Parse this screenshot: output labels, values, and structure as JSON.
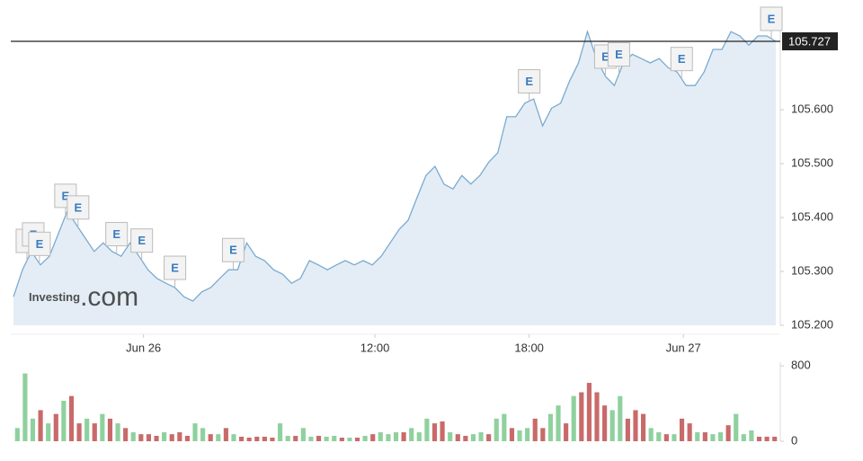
{
  "chart_data": [
    {
      "type": "area",
      "color": "#7aaad0",
      "fill": "#e4edf5",
      "watermark": {
        "brand": "Investing",
        "suffix": ".com"
      },
      "x": [
        0,
        1,
        2,
        3,
        4,
        5,
        6,
        7,
        8,
        9,
        10,
        11,
        12,
        13,
        14,
        15,
        16,
        17,
        18,
        19,
        20,
        21,
        22,
        23,
        24,
        25,
        26,
        27,
        28,
        29,
        30,
        31,
        32,
        33,
        34,
        35,
        36,
        37,
        38,
        39,
        40,
        41,
        42,
        43,
        44,
        45,
        46,
        47,
        48,
        49,
        50,
        51,
        52,
        53,
        54,
        55,
        56,
        57,
        58,
        59,
        60,
        61,
        62,
        63,
        64,
        65,
        66,
        67,
        68,
        69,
        70,
        71,
        72,
        73,
        74,
        75,
        76,
        77,
        78,
        79,
        80,
        81,
        82,
        83,
        84,
        85
      ],
      "values": [
        105.253,
        105.303,
        105.337,
        105.312,
        105.328,
        105.37,
        105.412,
        105.387,
        105.362,
        105.337,
        105.353,
        105.337,
        105.328,
        105.353,
        105.328,
        105.303,
        105.287,
        105.278,
        105.27,
        105.253,
        105.245,
        105.262,
        105.27,
        105.287,
        105.303,
        105.303,
        105.353,
        105.328,
        105.32,
        105.303,
        105.295,
        105.278,
        105.287,
        105.32,
        105.312,
        105.303,
        105.312,
        105.32,
        105.312,
        105.32,
        105.312,
        105.328,
        105.353,
        105.378,
        105.395,
        105.437,
        105.478,
        105.495,
        105.462,
        105.453,
        105.478,
        105.462,
        105.478,
        105.503,
        105.52,
        105.587,
        105.587,
        105.612,
        105.62,
        105.57,
        105.603,
        105.612,
        105.653,
        105.687,
        105.745,
        105.695,
        105.662,
        105.645,
        105.687,
        105.703,
        105.695,
        105.687,
        105.695,
        105.678,
        105.67,
        105.645,
        105.645,
        105.67,
        105.712,
        105.712,
        105.745,
        105.737,
        105.72,
        105.737,
        105.737,
        105.727
      ],
      "xlim": [
        0,
        85.3
      ],
      "xticks": [
        {
          "value": 14.5,
          "label": "Jun 26"
        },
        {
          "value": 40.3,
          "label": "12:00"
        },
        {
          "value": 57.5,
          "label": "18:00"
        },
        {
          "value": 74.7,
          "label": "Jun 27"
        }
      ],
      "ylim": [
        105.2,
        105.777
      ],
      "yticks": [
        {
          "value": 105.2,
          "label": "105.200"
        },
        {
          "value": 105.3,
          "label": "105.300"
        },
        {
          "value": 105.4,
          "label": "105.400"
        },
        {
          "value": 105.5,
          "label": "105.500"
        },
        {
          "value": 105.6,
          "label": "105.600"
        }
      ],
      "current": {
        "value": 105.727,
        "label": "105.727"
      },
      "events": [
        {
          "x": 1.5,
          "label": "E"
        },
        {
          "x": 2.2,
          "label": "E"
        },
        {
          "x": 2.9,
          "label": "E"
        },
        {
          "x": 5.8,
          "label": "E"
        },
        {
          "x": 7.2,
          "label": "E"
        },
        {
          "x": 11.5,
          "label": "E"
        },
        {
          "x": 14.3,
          "label": "E"
        },
        {
          "x": 18,
          "label": "E"
        },
        {
          "x": 24.5,
          "label": "E"
        },
        {
          "x": 57.5,
          "label": "E"
        },
        {
          "x": 66,
          "label": "E"
        },
        {
          "x": 67.5,
          "label": "E"
        },
        {
          "x": 74.5,
          "label": "E"
        },
        {
          "x": 84.5,
          "label": "E"
        }
      ]
    },
    {
      "type": "bar",
      "values": [
        140,
        720,
        240,
        330,
        190,
        290,
        430,
        480,
        190,
        240,
        190,
        290,
        240,
        190,
        140,
        95,
        75,
        75,
        57,
        95,
        75,
        95,
        57,
        190,
        140,
        75,
        75,
        140,
        75,
        48,
        38,
        48,
        48,
        38,
        190,
        57,
        57,
        140,
        48,
        57,
        48,
        57,
        38,
        38,
        38,
        57,
        75,
        95,
        75,
        95,
        95,
        140,
        95,
        240,
        190,
        210,
        95,
        75,
        57,
        75,
        95,
        75,
        240,
        290,
        140,
        115,
        140,
        240,
        140,
        290,
        380,
        190,
        480,
        520,
        620,
        520,
        380,
        330,
        480,
        240,
        330,
        290,
        140,
        95,
        75,
        75,
        240,
        190,
        95,
        95,
        75,
        95,
        170,
        290,
        75,
        115,
        48,
        48,
        48
      ],
      "bar_colors": [
        "#8fd19e",
        "#8fd19e",
        "#8fd19e",
        "#c96a6a",
        "#8fd19e",
        "#c96a6a",
        "#8fd19e",
        "#c96a6a",
        "#c96a6a",
        "#8fd19e",
        "#c96a6a",
        "#8fd19e",
        "#c96a6a",
        "#8fd19e",
        "#c96a6a",
        "#8fd19e",
        "#c96a6a",
        "#c96a6a",
        "#c96a6a",
        "#8fd19e",
        "#c96a6a",
        "#c96a6a",
        "#c96a6a",
        "#8fd19e",
        "#8fd19e",
        "#c96a6a",
        "#8fd19e",
        "#c96a6a",
        "#8fd19e",
        "#c96a6a",
        "#c96a6a",
        "#c96a6a",
        "#c96a6a",
        "#c96a6a",
        "#8fd19e",
        "#8fd19e",
        "#c96a6a",
        "#8fd19e",
        "#8fd19e",
        "#c96a6a",
        "#8fd19e",
        "#8fd19e",
        "#c96a6a",
        "#8fd19e",
        "#c96a6a",
        "#8fd19e",
        "#c96a6a",
        "#8fd19e",
        "#8fd19e",
        "#8fd19e",
        "#c96a6a",
        "#8fd19e",
        "#8fd19e",
        "#8fd19e",
        "#c96a6a",
        "#c96a6a",
        "#8fd19e",
        "#c96a6a",
        "#c96a6a",
        "#8fd19e",
        "#8fd19e",
        "#c96a6a",
        "#8fd19e",
        "#8fd19e",
        "#c96a6a",
        "#8fd19e",
        "#8fd19e",
        "#c96a6a",
        "#c96a6a",
        "#8fd19e",
        "#8fd19e",
        "#c96a6a",
        "#8fd19e",
        "#c96a6a",
        "#c96a6a",
        "#c96a6a",
        "#c96a6a",
        "#8fd19e",
        "#8fd19e",
        "#c96a6a",
        "#c96a6a",
        "#c96a6a",
        "#8fd19e",
        "#8fd19e",
        "#c96a6a",
        "#8fd19e",
        "#c96a6a",
        "#c96a6a",
        "#8fd19e",
        "#c96a6a",
        "#8fd19e",
        "#8fd19e",
        "#c96a6a",
        "#8fd19e",
        "#8fd19e",
        "#8fd19e",
        "#c96a6a",
        "#c96a6a",
        "#c96a6a"
      ],
      "ylim": [
        0,
        840
      ],
      "yticks": [
        0,
        800
      ]
    }
  ]
}
